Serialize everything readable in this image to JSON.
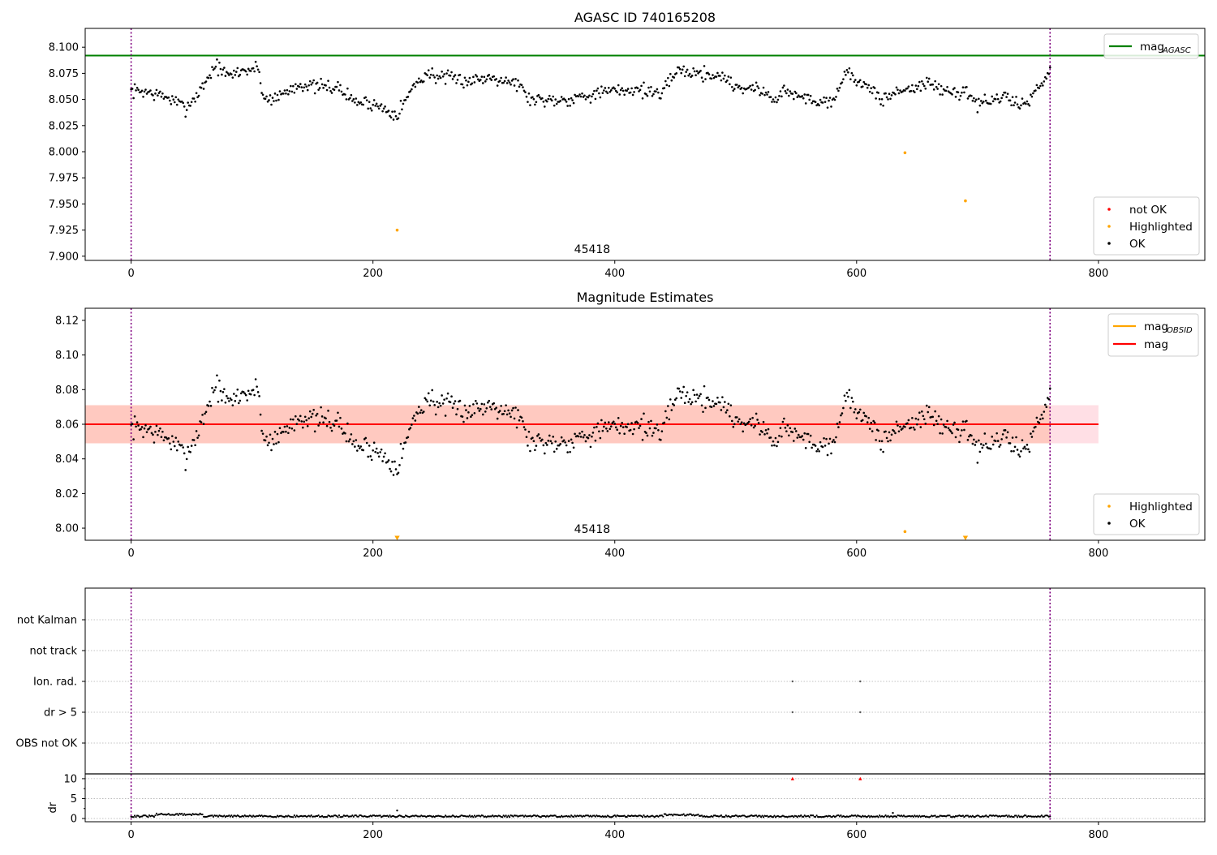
{
  "chart_data": [
    {
      "type": "scatter",
      "title": "AGASC ID 740165208",
      "xlim": [
        -38,
        888
      ],
      "ylim": [
        7.896,
        8.118
      ],
      "xticks": [
        0,
        200,
        400,
        600,
        800
      ],
      "yticks": [
        7.9,
        7.925,
        7.95,
        7.975,
        8.0,
        8.025,
        8.05,
        8.075,
        8.1
      ],
      "ytick_decimals": 3,
      "obsid_label": "45418",
      "obsid_label_x": 380,
      "vlines_x": [
        0,
        760
      ],
      "hline": {
        "name": "mag_AGASC",
        "legend_main": "mag",
        "legend_sub": "AGASC",
        "y": 8.092,
        "color": "#008000"
      },
      "legend_top": [
        {
          "label_main": "mag",
          "label_sub": "AGASC",
          "kind": "line",
          "color": "#008000"
        }
      ],
      "legend_bottom": [
        {
          "label": "not OK",
          "kind": "dot",
          "color": "#ff0000"
        },
        {
          "label": "Highlighted",
          "kind": "dot",
          "color": "#ffa500"
        },
        {
          "label": "OK",
          "kind": "dot",
          "color": "#000000"
        }
      ],
      "series": [
        {
          "name": "Highlighted",
          "color": "#ffa500",
          "x": [
            220,
            640,
            690
          ],
          "y": [
            7.925,
            7.999,
            7.953
          ]
        }
      ],
      "ok_series": {
        "name": "OK",
        "color": "#000000",
        "n": 761,
        "anchors_x": [
          0,
          10,
          30,
          45,
          55,
          70,
          80,
          90,
          105,
          110,
          120,
          140,
          150,
          170,
          185,
          200,
          220,
          235,
          245,
          260,
          280,
          300,
          320,
          330,
          340,
          360,
          380,
          400,
          420,
          440,
          450,
          470,
          490,
          500,
          520,
          530,
          540,
          560,
          580,
          590,
          600,
          620,
          640,
          660,
          680,
          690,
          700,
          720,
          740,
          760
        ],
        "anchors_y": [
          8.058,
          8.058,
          8.052,
          8.042,
          8.055,
          8.083,
          8.072,
          8.077,
          8.08,
          8.05,
          8.052,
          8.065,
          8.062,
          8.062,
          8.048,
          8.046,
          8.036,
          8.065,
          8.075,
          8.07,
          8.068,
          8.072,
          8.065,
          8.05,
          8.05,
          8.05,
          8.055,
          8.058,
          8.06,
          8.055,
          8.078,
          8.075,
          8.072,
          8.062,
          8.06,
          8.05,
          8.058,
          8.05,
          8.048,
          8.075,
          8.07,
          8.05,
          8.06,
          8.065,
          8.055,
          8.06,
          8.045,
          8.052,
          8.045,
          8.078
        ],
        "jitter": 0.0055
      }
    },
    {
      "type": "scatter",
      "title": "Magnitude Estimates",
      "xlim": [
        -38,
        888
      ],
      "ylim": [
        7.993,
        8.127
      ],
      "xticks": [
        0,
        200,
        400,
        600,
        800
      ],
      "yticks": [
        8.0,
        8.02,
        8.04,
        8.06,
        8.08,
        8.1,
        8.12
      ],
      "ytick_decimals": 2,
      "obsid_label": "45418",
      "obsid_label_x": 380,
      "vlines_x": [
        0,
        760
      ],
      "mag_line": {
        "name": "mag",
        "y": 8.06,
        "x_range": [
          -38,
          800
        ],
        "color": "#ff0000"
      },
      "mag_obsid_line": {
        "name": "mag_OBSID",
        "y": 8.06,
        "x_range": [
          0,
          760
        ],
        "color": "#ffa500"
      },
      "band_mag": {
        "y": [
          8.049,
          8.071
        ],
        "x_range": [
          -38,
          800
        ],
        "color": "#ffc0cb"
      },
      "band_obsid": {
        "y": [
          8.049,
          8.071
        ],
        "x_range": [
          -38,
          760
        ],
        "color": "#ffa07a"
      },
      "legend_top": [
        {
          "label_main": "mag",
          "label_sub": "OBSID",
          "kind": "line",
          "color": "#ffa500"
        },
        {
          "label_main": "mag",
          "label_sub": "",
          "kind": "line",
          "color": "#ff0000"
        }
      ],
      "legend_bottom": [
        {
          "label": "Highlighted",
          "kind": "dot",
          "color": "#ffa500"
        },
        {
          "label": "OK",
          "kind": "dot",
          "color": "#000000"
        }
      ],
      "series": [
        {
          "name": "Highlighted",
          "color": "#ffa500",
          "x": [
            640
          ],
          "y": [
            7.998
          ]
        },
        {
          "name": "Highlighted (below range)",
          "color": "#ffa500",
          "marker": "triangle-down",
          "x": [
            220,
            690
          ],
          "y": [
            7.994,
            7.994
          ]
        }
      ]
    },
    {
      "type": "scatter",
      "title": "",
      "xlim": [
        -38,
        888
      ],
      "xticks": [
        0,
        200,
        400,
        600,
        800
      ],
      "vlines_x": [
        0,
        760
      ],
      "flag_categories": [
        "not Kalman",
        "not track",
        "Ion. rad.",
        "dr > 5",
        "OBS not OK"
      ],
      "flag_points": [
        {
          "category": "Ion. rad.",
          "x": [
            547,
            603
          ]
        },
        {
          "category": "dr > 5",
          "x": [
            547,
            603
          ]
        }
      ],
      "dr": {
        "ylabel": "dr",
        "ylim": [
          0,
          11
        ],
        "yticks": [
          0,
          5,
          10
        ],
        "threshold": 10,
        "capped": {
          "color": "#ff0000",
          "marker": "triangle-up",
          "x": [
            547,
            603
          ],
          "y": [
            10,
            10
          ]
        },
        "outliers": {
          "x": [
            220,
            630
          ],
          "y": [
            2.0,
            1.4
          ]
        }
      }
    }
  ]
}
